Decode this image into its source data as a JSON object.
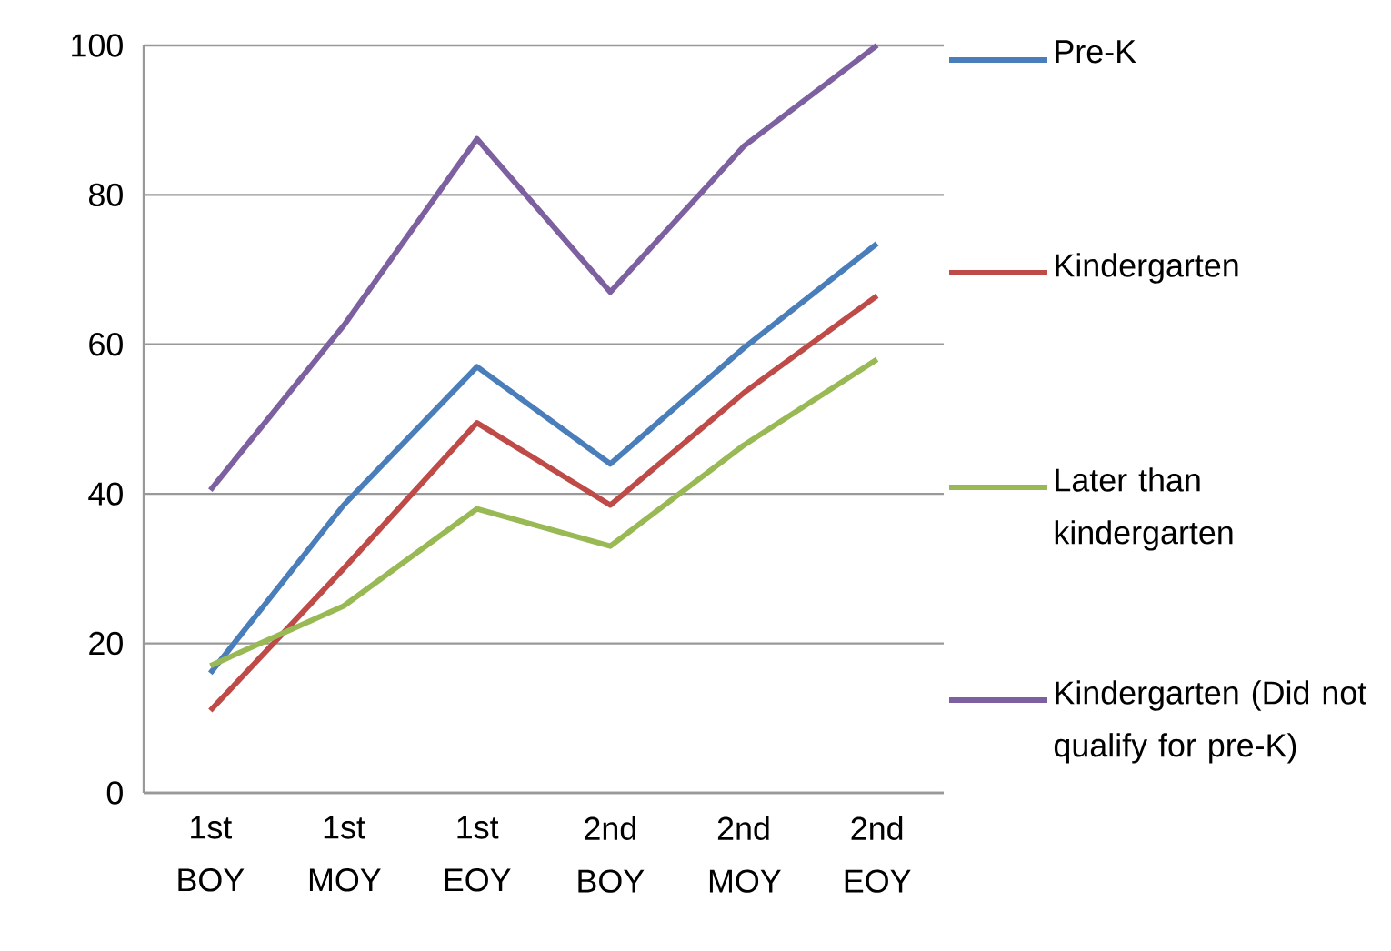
{
  "chart_data": {
    "type": "line",
    "categories": [
      "1st BOY",
      "1st MOY",
      "1st EOY",
      "2nd BOY",
      "2nd MOY",
      "2nd EOY"
    ],
    "series": [
      {
        "name": "Pre-K",
        "color": "#4a7ebb",
        "values": [
          16,
          38.5,
          57,
          44,
          59.5,
          73.5
        ]
      },
      {
        "name": "Kindergarten",
        "color": "#be4b48",
        "values": [
          11,
          30,
          49.5,
          38.5,
          53.5,
          66.5
        ]
      },
      {
        "name": "Later than kindergarten",
        "color": "#98b954",
        "values": [
          17,
          25,
          38,
          33,
          46.5,
          58
        ]
      },
      {
        "name": "Kindergarten (Did not qualify for pre-K)",
        "color": "#7d60a0",
        "values": [
          40.5,
          62.5,
          87.5,
          67,
          86.5,
          100
        ]
      }
    ],
    "ylim": [
      0,
      100
    ],
    "yticks": [
      0,
      20,
      40,
      60,
      80,
      100
    ],
    "grid": "y",
    "legend": "right"
  }
}
